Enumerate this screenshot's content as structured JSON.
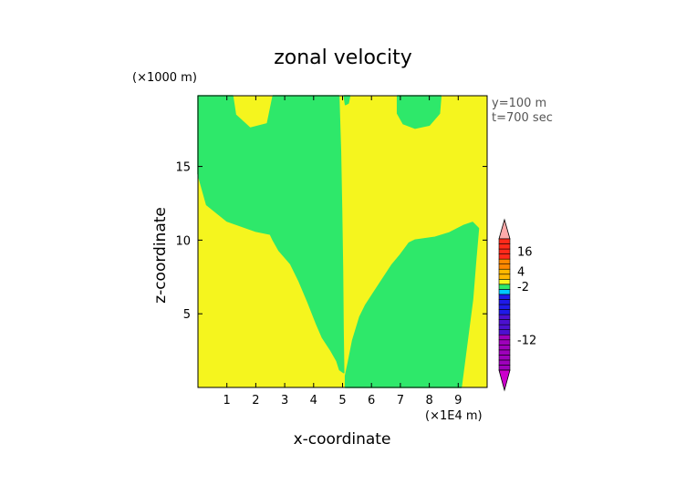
{
  "chart_data": {
    "type": "heatmap",
    "title": "zonal velocity",
    "xlabel": "x-coordinate",
    "ylabel": "z-coordinate",
    "x_unit": "(×1E4 m)",
    "y_unit": "(×1000 m)",
    "annotations": [
      "y=100 m",
      "t=700 sec"
    ],
    "xlim": [
      0,
      10
    ],
    "ylim": [
      0,
      19.8
    ],
    "x_ticks": [
      1,
      2,
      3,
      4,
      5,
      6,
      7,
      8,
      9
    ],
    "y_ticks": [
      5,
      10,
      15
    ],
    "grid": false,
    "background_level": {
      "range": [
        4,
        6
      ],
      "color": "#f5f51e"
    },
    "regions": [
      {
        "level": [
          -2,
          4
        ],
        "color": "#2ee86a",
        "desc": "left / central negative-velocity column",
        "outline": [
          [
            0,
            19.8
          ],
          [
            1.2,
            19.8
          ],
          [
            1.3,
            18.5
          ],
          [
            1.8,
            17.6
          ],
          [
            2.4,
            17.9
          ],
          [
            2.6,
            19.8
          ],
          [
            4.87,
            19.8
          ],
          [
            4.93,
            16
          ],
          [
            4.97,
            12
          ],
          [
            5.0,
            8
          ],
          [
            5.02,
            4
          ],
          [
            5.04,
            1
          ],
          [
            4.9,
            1.2
          ],
          [
            4.8,
            1.8
          ],
          [
            4.6,
            2.5
          ],
          [
            4.3,
            3.4
          ],
          [
            4.1,
            4.3
          ],
          [
            3.8,
            5.8
          ],
          [
            3.5,
            7.2
          ],
          [
            3.2,
            8.4
          ],
          [
            2.8,
            9.3
          ],
          [
            2.6,
            10.0
          ],
          [
            2.5,
            10.4
          ],
          [
            2.0,
            10.6
          ],
          [
            1.0,
            11.3
          ],
          [
            0.3,
            12.4
          ],
          [
            0,
            14.5
          ]
        ]
      },
      {
        "level": [
          -2,
          4
        ],
        "color": "#2ee86a",
        "desc": "right lower negative-velocity lobe",
        "outline": [
          [
            5.1,
            0
          ],
          [
            9.1,
            0
          ],
          [
            9.3,
            3
          ],
          [
            9.5,
            6
          ],
          [
            9.6,
            8.5
          ],
          [
            9.7,
            10.8
          ],
          [
            9.5,
            11.2
          ],
          [
            9.2,
            11.0
          ],
          [
            8.7,
            10.5
          ],
          [
            8.2,
            10.2
          ],
          [
            7.5,
            10.0
          ],
          [
            7.3,
            9.8
          ],
          [
            7.0,
            9.0
          ],
          [
            6.7,
            8.3
          ],
          [
            6.4,
            7.4
          ],
          [
            6.1,
            6.5
          ],
          [
            5.8,
            5.6
          ],
          [
            5.6,
            4.8
          ],
          [
            5.35,
            3.2
          ],
          [
            5.2,
            1.7
          ],
          [
            5.1,
            0.8
          ]
        ]
      },
      {
        "level": [
          -2,
          4
        ],
        "color": "#2ee86a",
        "desc": "upper right negative-velocity lobe",
        "outline": [
          [
            6.9,
            19.8
          ],
          [
            8.4,
            19.8
          ],
          [
            8.35,
            18.6
          ],
          [
            8.0,
            17.8
          ],
          [
            7.5,
            17.6
          ],
          [
            7.1,
            17.9
          ],
          [
            6.9,
            18.6
          ]
        ]
      },
      {
        "level": [
          -2,
          4
        ],
        "color": "#2ee86a",
        "desc": "small lobe near top at x=5",
        "outline": [
          [
            5.05,
            19.8
          ],
          [
            5.25,
            19.8
          ],
          [
            5.2,
            19.3
          ],
          [
            5.1,
            19.2
          ]
        ]
      }
    ],
    "colorbar": {
      "tick_labels": [
        "16",
        "4",
        "-2",
        "-12"
      ],
      "bands": [
        {
          "color": "#9e00bb",
          "count": 7
        },
        {
          "color": "#4c10d0",
          "count": 4
        },
        {
          "color": "#1f1ae8",
          "count": 4
        },
        {
          "color": "#00c8ff",
          "count": 1
        },
        {
          "color": "#2ee86a",
          "count": 1
        },
        {
          "color": "#f5f51e",
          "count": 1
        },
        {
          "color": "#ffb800",
          "count": 2
        },
        {
          "color": "#ff8800",
          "count": 2
        },
        {
          "color": "#ff2a1a",
          "count": 4
        }
      ],
      "top_arrow_color": "#ffaaaa",
      "bottom_arrow_color": "#cc00cc"
    }
  }
}
